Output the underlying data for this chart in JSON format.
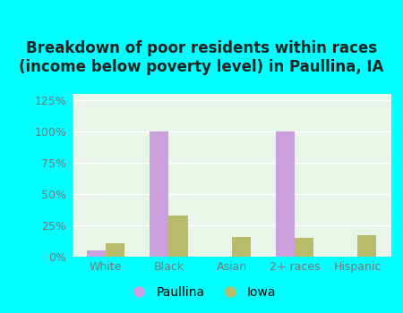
{
  "title": "Breakdown of poor residents within races\n(income below poverty level) in Paullina, IA",
  "categories": [
    "White",
    "Black",
    "Asian",
    "2+ races",
    "Hispanic"
  ],
  "paullina_values": [
    5,
    100,
    0,
    100,
    0
  ],
  "iowa_values": [
    11,
    33,
    16,
    15,
    17
  ],
  "paullina_color": "#c9a0dc",
  "iowa_color": "#b8bc6a",
  "background_outer": "#00ffff",
  "background_inner_top": "#e8f5e8",
  "background_inner_bottom": "#d8eed8",
  "ylim": [
    0,
    130
  ],
  "yticks": [
    0,
    25,
    50,
    75,
    100,
    125
  ],
  "ytick_labels": [
    "0%",
    "25%",
    "50%",
    "75%",
    "100%",
    "125%"
  ],
  "title_fontsize": 12,
  "bar_width": 0.3,
  "legend_labels": [
    "Paullina",
    "Iowa"
  ],
  "tick_color": "#777777",
  "grid_color": "#ffffff",
  "label_fontsize": 9
}
